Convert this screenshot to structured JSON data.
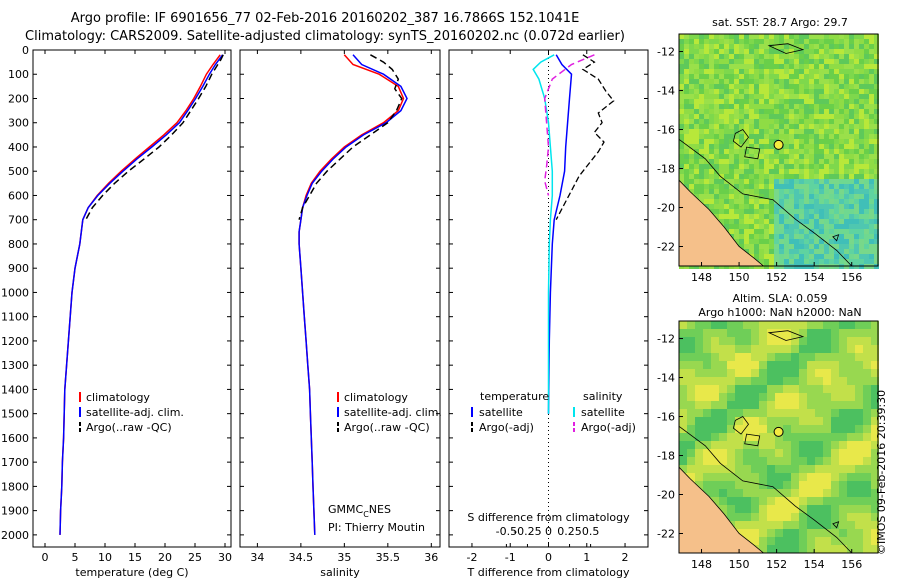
{
  "header": {
    "line1": "Argo profile: IF 6901656_77 02-Feb-2016 20160202_387 16.7866S 152.1041E",
    "line2": "Climatology: CARS2009. Satellite-adjusted climatology: synTS_20160202.nc (0.072d earlier)"
  },
  "colors": {
    "climatology": "#ff0000",
    "satellite": "#0000ff",
    "argo": "#000000",
    "sat_salinity": "#00e5ee",
    "argo_salinity": "#e020e0",
    "land": "#f5c08a"
  },
  "chart_data": [
    {
      "type": "line",
      "name": "temperature",
      "xlabel": "temperature (deg C)",
      "ylabel": "",
      "xlim": [
        -2,
        31
      ],
      "ylim": [
        2050,
        0
      ],
      "xticks": [
        0,
        5,
        10,
        15,
        20,
        25,
        30
      ],
      "yticks": [
        0,
        100,
        200,
        300,
        400,
        500,
        600,
        700,
        800,
        900,
        1000,
        1100,
        1200,
        1300,
        1400,
        1500,
        1600,
        1700,
        1800,
        1900,
        2000
      ],
      "legend": [
        "climatology",
        "satellite-adj. clim.",
        "Argo(..raw -QC)"
      ],
      "series": [
        {
          "name": "climatology",
          "color": "#ff0000",
          "dash": "none",
          "width": 1.5,
          "points": [
            [
              29.2,
              20
            ],
            [
              28.6,
              40
            ],
            [
              28.0,
              60
            ],
            [
              26.9,
              100
            ],
            [
              25.9,
              150
            ],
            [
              24.8,
              200
            ],
            [
              23.5,
              250
            ],
            [
              22.0,
              300
            ],
            [
              19.8,
              350
            ],
            [
              17.4,
              400
            ],
            [
              15.0,
              450
            ],
            [
              12.7,
              500
            ],
            [
              10.6,
              550
            ],
            [
              8.7,
              600
            ],
            [
              7.2,
              650
            ],
            [
              6.3,
              700
            ],
            [
              5.8,
              800
            ],
            [
              5.0,
              900
            ],
            [
              4.5,
              1000
            ],
            [
              4.2,
              1100
            ],
            [
              3.9,
              1200
            ],
            [
              3.6,
              1300
            ],
            [
              3.3,
              1400
            ],
            [
              3.2,
              1500
            ],
            [
              3.1,
              1600
            ],
            [
              2.9,
              1700
            ],
            [
              2.8,
              1800
            ],
            [
              2.6,
              1900
            ],
            [
              2.5,
              2000
            ]
          ]
        },
        {
          "name": "satellite-adj. clim.",
          "color": "#0000ff",
          "dash": "none",
          "width": 1.5,
          "points": [
            [
              29.6,
              20
            ],
            [
              29.0,
              40
            ],
            [
              28.4,
              60
            ],
            [
              27.4,
              100
            ],
            [
              26.3,
              150
            ],
            [
              25.1,
              200
            ],
            [
              23.8,
              250
            ],
            [
              22.4,
              300
            ],
            [
              20.2,
              350
            ],
            [
              17.8,
              400
            ],
            [
              15.3,
              450
            ],
            [
              13.0,
              500
            ],
            [
              10.8,
              550
            ],
            [
              8.8,
              600
            ],
            [
              7.2,
              650
            ],
            [
              6.3,
              700
            ],
            [
              5.8,
              800
            ],
            [
              5.0,
              900
            ],
            [
              4.5,
              1000
            ],
            [
              4.2,
              1100
            ],
            [
              3.9,
              1200
            ],
            [
              3.6,
              1300
            ],
            [
              3.3,
              1400
            ],
            [
              3.2,
              1500
            ],
            [
              3.1,
              1600
            ],
            [
              2.9,
              1700
            ],
            [
              2.8,
              1800
            ],
            [
              2.6,
              1900
            ],
            [
              2.5,
              2000
            ]
          ]
        },
        {
          "name": "Argo(..raw -QC)",
          "color": "#000000",
          "dash": "7,4",
          "width": 1.5,
          "points": [
            [
              29.7,
              20
            ],
            [
              29.3,
              40
            ],
            [
              28.8,
              60
            ],
            [
              27.8,
              100
            ],
            [
              26.8,
              150
            ],
            [
              25.6,
              200
            ],
            [
              24.3,
              250
            ],
            [
              23.0,
              300
            ],
            [
              21.1,
              350
            ],
            [
              19.0,
              400
            ],
            [
              16.5,
              450
            ],
            [
              13.9,
              500
            ],
            [
              11.6,
              550
            ],
            [
              9.6,
              600
            ],
            [
              7.9,
              650
            ],
            [
              6.8,
              700
            ]
          ]
        }
      ]
    },
    {
      "type": "line",
      "name": "salinity",
      "xlabel": "salinity",
      "ylabel": "",
      "xlim": [
        33.8,
        36.1
      ],
      "ylim": [
        2050,
        0
      ],
      "xticks": [
        34,
        34.5,
        35,
        35.5,
        36
      ],
      "legend": [
        "climatology",
        "satellite-adj. clim.",
        "Argo(..raw -QC)"
      ],
      "annotation": "GMMC_CNES",
      "pi": "PI: Thierry Moutin",
      "series": [
        {
          "name": "climatology",
          "color": "#ff0000",
          "dash": "none",
          "width": 1.5,
          "points": [
            [
              35.0,
              20
            ],
            [
              35.1,
              60
            ],
            [
              35.4,
              100
            ],
            [
              35.62,
              150
            ],
            [
              35.68,
              200
            ],
            [
              35.62,
              250
            ],
            [
              35.45,
              300
            ],
            [
              35.2,
              350
            ],
            [
              35.0,
              400
            ],
            [
              34.85,
              450
            ],
            [
              34.72,
              500
            ],
            [
              34.62,
              550
            ],
            [
              34.56,
              600
            ],
            [
              34.52,
              650
            ],
            [
              34.5,
              700
            ],
            [
              34.48,
              750
            ],
            [
              34.48,
              800
            ],
            [
              34.5,
              900
            ],
            [
              34.52,
              1000
            ],
            [
              34.54,
              1100
            ],
            [
              34.56,
              1200
            ],
            [
              34.58,
              1300
            ],
            [
              34.6,
              1400
            ],
            [
              34.61,
              1500
            ],
            [
              34.62,
              1600
            ],
            [
              34.63,
              1700
            ],
            [
              34.64,
              1800
            ],
            [
              34.65,
              1900
            ],
            [
              34.66,
              2000
            ]
          ]
        },
        {
          "name": "satellite-adj. clim.",
          "color": "#0000ff",
          "dash": "none",
          "width": 1.5,
          "points": [
            [
              35.1,
              20
            ],
            [
              35.2,
              60
            ],
            [
              35.45,
              100
            ],
            [
              35.65,
              150
            ],
            [
              35.72,
              200
            ],
            [
              35.65,
              250
            ],
            [
              35.48,
              300
            ],
            [
              35.22,
              350
            ],
            [
              35.02,
              400
            ],
            [
              34.87,
              450
            ],
            [
              34.74,
              500
            ],
            [
              34.63,
              550
            ],
            [
              34.57,
              600
            ],
            [
              34.52,
              650
            ],
            [
              34.5,
              700
            ],
            [
              34.48,
              750
            ],
            [
              34.48,
              800
            ],
            [
              34.5,
              900
            ],
            [
              34.52,
              1000
            ],
            [
              34.54,
              1100
            ],
            [
              34.56,
              1200
            ],
            [
              34.58,
              1300
            ],
            [
              34.6,
              1400
            ],
            [
              34.61,
              1500
            ],
            [
              34.62,
              1600
            ],
            [
              34.63,
              1700
            ],
            [
              34.64,
              1800
            ],
            [
              34.65,
              1900
            ],
            [
              34.66,
              2000
            ]
          ]
        },
        {
          "name": "Argo(..raw -QC)",
          "color": "#000000",
          "dash": "7,4",
          "width": 1.5,
          "points": [
            [
              35.3,
              20
            ],
            [
              35.45,
              50
            ],
            [
              35.55,
              80
            ],
            [
              35.62,
              120
            ],
            [
              35.58,
              160
            ],
            [
              35.66,
              200
            ],
            [
              35.6,
              250
            ],
            [
              35.5,
              300
            ],
            [
              35.3,
              350
            ],
            [
              35.1,
              400
            ],
            [
              34.95,
              450
            ],
            [
              34.8,
              500
            ],
            [
              34.68,
              550
            ],
            [
              34.6,
              600
            ],
            [
              34.52,
              650
            ],
            [
              34.48,
              700
            ]
          ]
        }
      ]
    },
    {
      "type": "line",
      "name": "differences",
      "xlabel": "T difference from climatology",
      "xlabel_top": "S difference from climatology",
      "xlim": [
        -2.6,
        2.6
      ],
      "ylim": [
        2050,
        0
      ],
      "xticks_bottom": [
        -2,
        -1,
        0,
        1,
        2
      ],
      "xticks_top": [
        -0.5,
        -0.25,
        0,
        0.25,
        0.5
      ],
      "legend_temperature": {
        "title": "temperature",
        "items": [
          "satellite",
          "Argo(-adj)"
        ]
      },
      "legend_salinity": {
        "title": "salinity",
        "items": [
          "satellite",
          "Argo(-adj)"
        ]
      },
      "series": [
        {
          "name": "T satellite",
          "color": "#0000ff",
          "dash": "none",
          "width": 1.5,
          "points": [
            [
              0.2,
              20
            ],
            [
              0.35,
              60
            ],
            [
              0.6,
              100
            ],
            [
              0.55,
              200
            ],
            [
              0.5,
              300
            ],
            [
              0.45,
              400
            ],
            [
              0.42,
              500
            ],
            [
              0.3,
              600
            ],
            [
              0.15,
              700
            ],
            [
              0.1,
              800
            ],
            [
              0.05,
              1000
            ],
            [
              0.02,
              1200
            ],
            [
              0.0,
              1500
            ]
          ]
        },
        {
          "name": "T Argo(-adj)",
          "color": "#000000",
          "dash": "6,3",
          "width": 1.3,
          "points": [
            [
              0.9,
              20
            ],
            [
              1.2,
              50
            ],
            [
              0.9,
              80
            ],
            [
              1.3,
              120
            ],
            [
              1.5,
              170
            ],
            [
              1.7,
              210
            ],
            [
              1.3,
              260
            ],
            [
              1.4,
              300
            ],
            [
              1.2,
              340
            ],
            [
              1.45,
              380
            ],
            [
              1.3,
              420
            ],
            [
              1.1,
              460
            ],
            [
              0.8,
              520
            ],
            [
              0.6,
              580
            ],
            [
              0.4,
              640
            ],
            [
              0.2,
              700
            ]
          ]
        },
        {
          "name": "S satellite",
          "color": "#00e5ee",
          "dash": "none",
          "width": 1.5,
          "points": [
            [
              0.15,
              20
            ],
            [
              -0.2,
              50
            ],
            [
              -0.4,
              80
            ],
            [
              -0.25,
              120
            ],
            [
              -0.1,
              200
            ],
            [
              0.0,
              300
            ],
            [
              0.05,
              400
            ],
            [
              0.1,
              500
            ],
            [
              0.1,
              600
            ],
            [
              0.05,
              700
            ],
            [
              0.02,
              800
            ],
            [
              0.0,
              1000
            ],
            [
              0.0,
              1500
            ]
          ]
        },
        {
          "name": "S Argo(-adj)",
          "color": "#e020e0",
          "dash": "7,4",
          "width": 1.5,
          "points": [
            [
              1.2,
              20
            ],
            [
              0.6,
              60
            ],
            [
              0.1,
              120
            ],
            [
              -0.1,
              200
            ],
            [
              -0.05,
              300
            ],
            [
              0.0,
              400
            ],
            [
              -0.05,
              480
            ],
            [
              -0.1,
              540
            ],
            [
              0.0,
              600
            ]
          ]
        }
      ]
    }
  ],
  "maps": {
    "sst": {
      "title": "sat. SST: 28.7 Argo: 29.7",
      "xticks": [
        148,
        150,
        152,
        154,
        156
      ],
      "yticks": [
        -12,
        -14,
        -16,
        -18,
        -20,
        -22
      ],
      "float_lon": 152.1041,
      "float_lat": -16.7866
    },
    "sla": {
      "title1": "Altim. SLA: 0.059",
      "title2": "Argo h1000: NaN h2000: NaN",
      "xticks": [
        148,
        150,
        152,
        154,
        156
      ],
      "yticks": [
        -12,
        -14,
        -16,
        -18,
        -20,
        -22
      ],
      "float_lon": 152.1041,
      "float_lat": -16.7866
    }
  },
  "watermark": "©IMOS 09-Feb-2016 20:39:30"
}
